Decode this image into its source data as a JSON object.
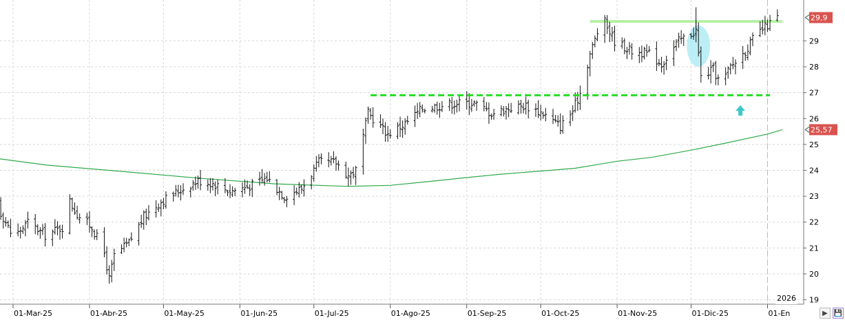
{
  "chart_data": {
    "type": "ohlc",
    "title": "",
    "xlabel": "",
    "ylabel": "",
    "ylim": [
      19,
      30.4
    ],
    "grid": true,
    "y_ticks": [
      "19",
      "20",
      "21",
      "22",
      "23",
      "24",
      "25",
      "26",
      "27",
      "28",
      "29"
    ],
    "x_ticks": [
      "01-Mar-25",
      "01-Abr-25",
      "01-May-25",
      "01-Jun-25",
      "01-Jul-25",
      "01-Ago-25",
      "01-Sep-25",
      "01-Oct-25",
      "01-Nov-25",
      "01-Dic-25",
      "01-En"
    ],
    "year_marker": "2026",
    "price_badges": [
      {
        "label": "29,9",
        "value": 29.9,
        "color": "#d9534f"
      },
      {
        "label": "25,57",
        "value": 25.57,
        "color": "#d9534f"
      }
    ],
    "price_anchors": [
      [
        "2025-02-18",
        23.3
      ],
      [
        "2025-02-25",
        22.2
      ],
      [
        "2025-03-01",
        21.4
      ],
      [
        "2025-03-07",
        22.0
      ],
      [
        "2025-03-14",
        21.5
      ],
      [
        "2025-03-21",
        21.8
      ],
      [
        "2025-03-24",
        22.8
      ],
      [
        "2025-03-27",
        22.3
      ],
      [
        "2025-04-02",
        21.8
      ],
      [
        "2025-04-07",
        20.8
      ],
      [
        "2025-04-09",
        19.8
      ],
      [
        "2025-04-11",
        20.7
      ],
      [
        "2025-04-17",
        21.2
      ],
      [
        "2025-04-23",
        22.2
      ],
      [
        "2025-04-30",
        22.8
      ],
      [
        "2025-05-07",
        23.2
      ],
      [
        "2025-05-15",
        23.6
      ],
      [
        "2025-05-21",
        23.5
      ],
      [
        "2025-05-28",
        23.2
      ],
      [
        "2025-06-05",
        23.4
      ],
      [
        "2025-06-12",
        23.7
      ],
      [
        "2025-06-19",
        23.0
      ],
      [
        "2025-06-26",
        23.3
      ],
      [
        "2025-07-03",
        24.3
      ],
      [
        "2025-07-10",
        24.3
      ],
      [
        "2025-07-15",
        23.8
      ],
      [
        "2025-07-18",
        24.0
      ],
      [
        "2025-07-23",
        26.2
      ],
      [
        "2025-07-31",
        25.4
      ],
      [
        "2025-08-07",
        25.8
      ],
      [
        "2025-08-14",
        26.4
      ],
      [
        "2025-08-21",
        26.5
      ],
      [
        "2025-08-28",
        26.6
      ],
      [
        "2025-09-04",
        26.6
      ],
      [
        "2025-09-11",
        26.2
      ],
      [
        "2025-09-18",
        26.4
      ],
      [
        "2025-09-25",
        26.5
      ],
      [
        "2025-10-02",
        26.2
      ],
      [
        "2025-10-09",
        25.7
      ],
      [
        "2025-10-14",
        26.3
      ],
      [
        "2025-10-17",
        27.0
      ],
      [
        "2025-10-21",
        28.5
      ],
      [
        "2025-10-26",
        29.9
      ],
      [
        "2025-10-31",
        29.0
      ],
      [
        "2025-11-07",
        28.6
      ],
      [
        "2025-11-14",
        28.5
      ],
      [
        "2025-11-19",
        28.1
      ],
      [
        "2025-11-26",
        29.0
      ],
      [
        "2025-12-03",
        29.4
      ],
      [
        "2025-12-05",
        27.6
      ],
      [
        "2025-12-10",
        27.9
      ],
      [
        "2025-12-13",
        27.3
      ],
      [
        "2025-12-17",
        28.0
      ],
      [
        "2025-12-23",
        28.6
      ],
      [
        "2025-12-27",
        29.2
      ],
      [
        "2026-01-01",
        29.6
      ],
      [
        "2026-01-05",
        29.9
      ]
    ],
    "series": [
      {
        "name": "",
        "type": "line",
        "color": "#2eaa4a",
        "values": [
          [
            "2025-02-15",
            24.55
          ],
          [
            "2025-03-15",
            24.2
          ],
          [
            "2025-04-15",
            23.95
          ],
          [
            "2025-05-15",
            23.7
          ],
          [
            "2025-06-15",
            23.48
          ],
          [
            "2025-07-15",
            23.38
          ],
          [
            "2025-08-01",
            23.42
          ],
          [
            "2025-08-15",
            23.55
          ],
          [
            "2025-09-01",
            23.72
          ],
          [
            "2025-09-15",
            23.85
          ],
          [
            "2025-10-01",
            23.97
          ],
          [
            "2025-10-15",
            24.08
          ],
          [
            "2025-11-01",
            24.35
          ],
          [
            "2025-11-15",
            24.5
          ],
          [
            "2025-12-01",
            24.78
          ],
          [
            "2025-12-15",
            25.05
          ],
          [
            "2026-01-01",
            25.4
          ],
          [
            "2026-01-07",
            25.57
          ]
        ]
      }
    ],
    "annotations": {
      "resistance_line": {
        "value": 29.75,
        "from": "2025-10-21",
        "to": "2026-01-07",
        "color": "#b6f0a4"
      },
      "support_line": {
        "value": 26.9,
        "from": "2025-07-24",
        "to": "2026-01-02",
        "color": "#22dd22",
        "style": "dashed"
      },
      "highlight_ellipse": {
        "date": "2025-12-04",
        "value": 28.8,
        "color": "#b5ecf5"
      },
      "arrow": {
        "date": "2025-12-21",
        "value": 26.3,
        "direction": "up",
        "color": "#3fc7c7"
      }
    }
  },
  "toolbar": {
    "play_icon": "play-icon",
    "save_icon": "save-icon"
  }
}
